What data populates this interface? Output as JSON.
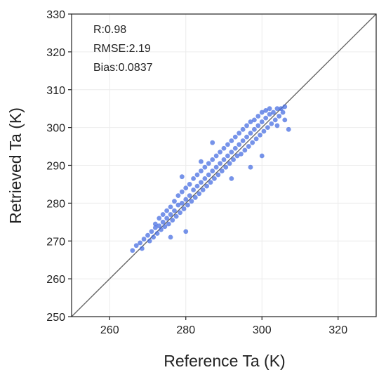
{
  "chart_data": {
    "type": "scatter",
    "title": "",
    "xlabel": "Reference Ta (K)",
    "ylabel": "Retrieved Ta (K)",
    "xlim": [
      250,
      330
    ],
    "ylim": [
      250,
      330
    ],
    "xticks": [
      260,
      280,
      300,
      320
    ],
    "yticks": [
      250,
      260,
      270,
      280,
      290,
      300,
      310,
      320,
      330
    ],
    "grid": true,
    "reference_line": "1:1",
    "point_color": "#4169e1",
    "line_color": "#666666",
    "annotations": [
      "R:0.98",
      "RMSE:2.19",
      "Bias:0.0837"
    ],
    "series": [
      {
        "points": [
          [
            266.0,
            267.5
          ],
          [
            267.0,
            268.8
          ],
          [
            268.0,
            269.5
          ],
          [
            268.5,
            268.0
          ],
          [
            269.0,
            270.5
          ],
          [
            270.0,
            271.5
          ],
          [
            270.5,
            270.0
          ],
          [
            271.0,
            272.5
          ],
          [
            271.5,
            271.0
          ],
          [
            272.0,
            273.5
          ],
          [
            272.0,
            274.5
          ],
          [
            272.5,
            272.0
          ],
          [
            273.0,
            274.0
          ],
          [
            273.0,
            276.0
          ],
          [
            273.5,
            273.0
          ],
          [
            274.0,
            275.0
          ],
          [
            274.0,
            277.0
          ],
          [
            274.5,
            273.8
          ],
          [
            275.0,
            276.0
          ],
          [
            275.0,
            278.0
          ],
          [
            275.5,
            274.5
          ],
          [
            276.0,
            277.0
          ],
          [
            276.0,
            279.0
          ],
          [
            276.5,
            275.5
          ],
          [
            277.0,
            278.0
          ],
          [
            277.0,
            280.5
          ],
          [
            277.5,
            276.5
          ],
          [
            278.0,
            279.5
          ],
          [
            278.0,
            282.0
          ],
          [
            278.5,
            277.5
          ],
          [
            279.0,
            280.0
          ],
          [
            279.0,
            283.0
          ],
          [
            279.5,
            278.5
          ],
          [
            280.0,
            281.0
          ],
          [
            280.0,
            284.0
          ],
          [
            280.5,
            279.5
          ],
          [
            281.0,
            282.0
          ],
          [
            281.0,
            285.0
          ],
          [
            281.5,
            280.5
          ],
          [
            282.0,
            283.5
          ],
          [
            282.0,
            286.5
          ],
          [
            282.5,
            281.5
          ],
          [
            283.0,
            284.5
          ],
          [
            283.0,
            287.5
          ],
          [
            283.5,
            282.5
          ],
          [
            284.0,
            285.5
          ],
          [
            284.0,
            288.5
          ],
          [
            284.5,
            283.5
          ],
          [
            285.0,
            286.5
          ],
          [
            285.0,
            289.5
          ],
          [
            285.5,
            284.5
          ],
          [
            286.0,
            287.5
          ],
          [
            286.0,
            290.5
          ],
          [
            286.5,
            285.5
          ],
          [
            287.0,
            288.5
          ],
          [
            287.0,
            291.5
          ],
          [
            287.5,
            286.5
          ],
          [
            288.0,
            289.5
          ],
          [
            288.0,
            292.5
          ],
          [
            288.5,
            287.5
          ],
          [
            289.0,
            290.5
          ],
          [
            289.0,
            293.5
          ],
          [
            289.5,
            288.5
          ],
          [
            290.0,
            291.5
          ],
          [
            290.0,
            294.5
          ],
          [
            290.5,
            289.5
          ],
          [
            291.0,
            292.5
          ],
          [
            291.0,
            295.5
          ],
          [
            291.5,
            290.5
          ],
          [
            292.0,
            293.5
          ],
          [
            292.0,
            296.5
          ],
          [
            292.5,
            291.5
          ],
          [
            293.0,
            294.5
          ],
          [
            293.0,
            297.5
          ],
          [
            293.5,
            292.5
          ],
          [
            294.0,
            295.5
          ],
          [
            294.0,
            298.5
          ],
          [
            294.5,
            293.0
          ],
          [
            295.0,
            296.5
          ],
          [
            295.0,
            299.5
          ],
          [
            295.5,
            294.0
          ],
          [
            296.0,
            297.5
          ],
          [
            296.0,
            300.5
          ],
          [
            296.5,
            295.0
          ],
          [
            297.0,
            298.5
          ],
          [
            297.0,
            301.5
          ],
          [
            297.5,
            296.0
          ],
          [
            298.0,
            299.5
          ],
          [
            298.0,
            302.0
          ],
          [
            298.5,
            297.0
          ],
          [
            299.0,
            300.5
          ],
          [
            299.0,
            303.0
          ],
          [
            299.5,
            298.0
          ],
          [
            300.0,
            301.5
          ],
          [
            300.0,
            304.0
          ],
          [
            300.5,
            299.0
          ],
          [
            301.0,
            302.5
          ],
          [
            301.0,
            304.5
          ],
          [
            301.5,
            300.0
          ],
          [
            302.0,
            303.5
          ],
          [
            302.0,
            305.0
          ],
          [
            302.5,
            301.0
          ],
          [
            303.0,
            304.0
          ],
          [
            303.5,
            302.0
          ],
          [
            304.0,
            305.0
          ],
          [
            304.5,
            303.0
          ],
          [
            305.0,
            305.0
          ],
          [
            305.5,
            304.0
          ],
          [
            306.0,
            305.5
          ],
          [
            306.0,
            302.0
          ],
          [
            307.0,
            299.5
          ],
          [
            304.0,
            300.5
          ],
          [
            287.0,
            296.0
          ],
          [
            300.0,
            292.5
          ],
          [
            297.0,
            289.5
          ],
          [
            284.0,
            291.0
          ],
          [
            279.0,
            287.0
          ],
          [
            292.0,
            286.5
          ],
          [
            280.0,
            272.5
          ],
          [
            276.0,
            271.0
          ]
        ]
      }
    ]
  }
}
